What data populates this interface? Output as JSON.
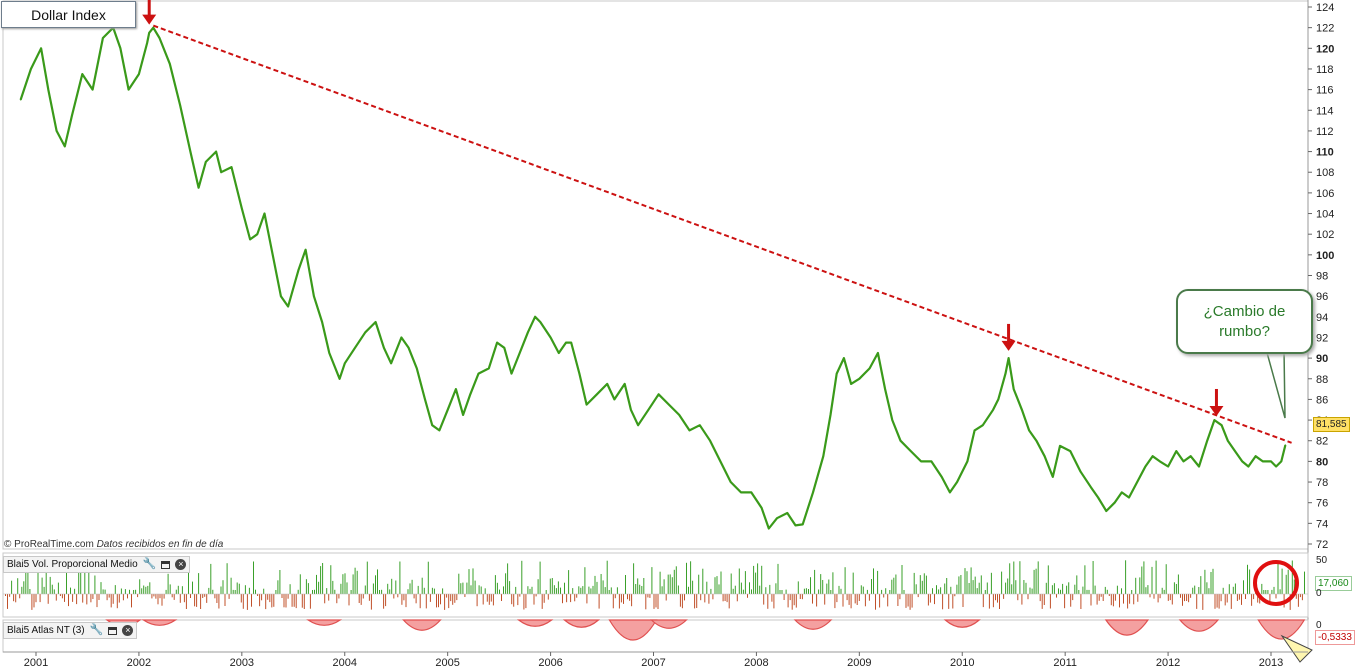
{
  "chart_data": [
    {
      "type": "line",
      "title": "Dollar Index",
      "subtitle": "",
      "xlabel": "",
      "ylabel": "",
      "ylim": [
        72,
        124
      ],
      "xlim": [
        2000.8,
        2013.3
      ],
      "y_ticks": [
        72,
        74,
        76,
        78,
        80,
        82,
        84,
        86,
        88,
        90,
        92,
        94,
        96,
        98,
        100,
        102,
        104,
        106,
        108,
        110,
        112,
        114,
        116,
        118,
        120,
        122,
        124
      ],
      "y_major_ticks": [
        80,
        90,
        100,
        110,
        120
      ],
      "x_tick_labels": [
        "2001",
        "2002",
        "2003",
        "2004",
        "2005",
        "2006",
        "2007",
        "2008",
        "2009",
        "2010",
        "2011",
        "2012",
        "2013"
      ],
      "grid": false,
      "legend": "none",
      "line_color": "#3a9a1a",
      "last_value_label": "81,585",
      "series": [
        {
          "points": [
            [
              2000.85,
              115
            ],
            [
              2000.95,
              118
            ],
            [
              2001.05,
              120
            ],
            [
              2001.12,
              116
            ],
            [
              2001.2,
              112
            ],
            [
              2001.28,
              110.5
            ],
            [
              2001.35,
              113.5
            ],
            [
              2001.45,
              117.5
            ],
            [
              2001.55,
              116
            ],
            [
              2001.65,
              121
            ],
            [
              2001.75,
              122
            ],
            [
              2001.82,
              120
            ],
            [
              2001.9,
              116
            ],
            [
              2002.0,
              117.5
            ],
            [
              2002.08,
              120.5
            ],
            [
              2002.1,
              121.5
            ],
            [
              2002.14,
              122
            ],
            [
              2002.2,
              121
            ],
            [
              2002.3,
              118.5
            ],
            [
              2002.4,
              114.5
            ],
            [
              2002.5,
              110
            ],
            [
              2002.58,
              106.5
            ],
            [
              2002.65,
              109
            ],
            [
              2002.75,
              110
            ],
            [
              2002.8,
              108
            ],
            [
              2002.9,
              108.5
            ],
            [
              2003.0,
              104.5
            ],
            [
              2003.08,
              101.5
            ],
            [
              2003.15,
              102
            ],
            [
              2003.22,
              104
            ],
            [
              2003.3,
              100
            ],
            [
              2003.38,
              96
            ],
            [
              2003.45,
              95
            ],
            [
              2003.55,
              98.5
            ],
            [
              2003.62,
              100.5
            ],
            [
              2003.7,
              96
            ],
            [
              2003.78,
              93.5
            ],
            [
              2003.85,
              90.5
            ],
            [
              2003.95,
              88
            ],
            [
              2004.0,
              89.5
            ],
            [
              2004.1,
              91
            ],
            [
              2004.2,
              92.5
            ],
            [
              2004.3,
              93.5
            ],
            [
              2004.38,
              91
            ],
            [
              2004.45,
              89.5
            ],
            [
              2004.55,
              92
            ],
            [
              2004.62,
              91
            ],
            [
              2004.7,
              89
            ],
            [
              2004.78,
              86
            ],
            [
              2004.85,
              83.5
            ],
            [
              2004.92,
              83
            ],
            [
              2005.0,
              85
            ],
            [
              2005.08,
              87
            ],
            [
              2005.15,
              84.5
            ],
            [
              2005.22,
              86.5
            ],
            [
              2005.3,
              88.5
            ],
            [
              2005.4,
              89
            ],
            [
              2005.48,
              91.5
            ],
            [
              2005.55,
              91
            ],
            [
              2005.62,
              88.5
            ],
            [
              2005.7,
              90.5
            ],
            [
              2005.78,
              92.5
            ],
            [
              2005.85,
              94
            ],
            [
              2005.9,
              93.5
            ],
            [
              2006.0,
              92
            ],
            [
              2006.08,
              90.5
            ],
            [
              2006.15,
              91.5
            ],
            [
              2006.2,
              91.5
            ],
            [
              2006.28,
              88.5
            ],
            [
              2006.35,
              85.5
            ],
            [
              2006.45,
              86.5
            ],
            [
              2006.55,
              87.5
            ],
            [
              2006.62,
              86
            ],
            [
              2006.72,
              87.5
            ],
            [
              2006.78,
              85
            ],
            [
              2006.85,
              83.5
            ],
            [
              2006.95,
              85
            ],
            [
              2007.05,
              86.5
            ],
            [
              2007.15,
              85.5
            ],
            [
              2007.25,
              84.5
            ],
            [
              2007.35,
              83
            ],
            [
              2007.45,
              83.5
            ],
            [
              2007.55,
              82
            ],
            [
              2007.65,
              80
            ],
            [
              2007.75,
              78
            ],
            [
              2007.85,
              77
            ],
            [
              2007.95,
              77
            ],
            [
              2008.05,
              75.5
            ],
            [
              2008.12,
              73.5
            ],
            [
              2008.2,
              74.5
            ],
            [
              2008.3,
              75
            ],
            [
              2008.38,
              73.8
            ],
            [
              2008.45,
              73.9
            ],
            [
              2008.55,
              77
            ],
            [
              2008.65,
              80.5
            ],
            [
              2008.72,
              84.5
            ],
            [
              2008.78,
              88.5
            ],
            [
              2008.85,
              90
            ],
            [
              2008.92,
              87.5
            ],
            [
              2009.0,
              88
            ],
            [
              2009.1,
              89
            ],
            [
              2009.18,
              90.5
            ],
            [
              2009.25,
              87
            ],
            [
              2009.32,
              84
            ],
            [
              2009.4,
              82
            ],
            [
              2009.5,
              81
            ],
            [
              2009.6,
              80
            ],
            [
              2009.7,
              80
            ],
            [
              2009.8,
              78.5
            ],
            [
              2009.88,
              77
            ],
            [
              2009.95,
              78
            ],
            [
              2010.05,
              80
            ],
            [
              2010.12,
              83
            ],
            [
              2010.2,
              83.5
            ],
            [
              2010.3,
              85
            ],
            [
              2010.35,
              86
            ],
            [
              2010.42,
              88.5
            ],
            [
              2010.45,
              90
            ],
            [
              2010.5,
              87
            ],
            [
              2010.58,
              85
            ],
            [
              2010.65,
              83
            ],
            [
              2010.72,
              82
            ],
            [
              2010.8,
              80.5
            ],
            [
              2010.88,
              78.5
            ],
            [
              2010.95,
              81.5
            ],
            [
              2011.05,
              81
            ],
            [
              2011.15,
              79
            ],
            [
              2011.25,
              77.5
            ],
            [
              2011.32,
              76.5
            ],
            [
              2011.4,
              75.2
            ],
            [
              2011.48,
              76
            ],
            [
              2011.55,
              77
            ],
            [
              2011.62,
              76.5
            ],
            [
              2011.7,
              78
            ],
            [
              2011.78,
              79.5
            ],
            [
              2011.85,
              80.5
            ],
            [
              2011.92,
              80
            ],
            [
              2012.0,
              79.5
            ],
            [
              2012.08,
              81
            ],
            [
              2012.15,
              80
            ],
            [
              2012.22,
              80.5
            ],
            [
              2012.3,
              79.5
            ],
            [
              2012.38,
              82
            ],
            [
              2012.45,
              84
            ],
            [
              2012.52,
              83.5
            ],
            [
              2012.58,
              82
            ],
            [
              2012.65,
              81
            ],
            [
              2012.72,
              80
            ],
            [
              2012.78,
              79.5
            ],
            [
              2012.85,
              80.5
            ],
            [
              2012.92,
              80
            ],
            [
              2013.0,
              80
            ],
            [
              2013.05,
              79.5
            ],
            [
              2013.1,
              80
            ],
            [
              2013.14,
              81.585
            ]
          ]
        }
      ],
      "trendline": {
        "style": "dashed",
        "color": "#cc1111",
        "from": [
          2002.14,
          122.2
        ],
        "to": [
          2013.2,
          81.8
        ]
      },
      "arrows": [
        {
          "x": 2002.1,
          "y_tip": 122.2,
          "color": "#cc1111"
        },
        {
          "x": 2010.45,
          "y_tip": 90.6,
          "color": "#cc1111"
        },
        {
          "x": 2012.47,
          "y_tip": 84.3,
          "color": "#cc1111"
        }
      ],
      "annotation": {
        "lines": [
          "¿Cambio de",
          "rumbo?"
        ]
      }
    },
    {
      "type": "bar",
      "title": "Blai5 Vol. Proporcional Medio",
      "ylim": [
        -20,
        50
      ],
      "y_ticks": [
        0,
        50
      ],
      "positive_color": "#3aa02a",
      "negative_color": "#c0502a",
      "last_value_label": "17,060"
    },
    {
      "type": "area",
      "title": "Blai5 Atlas NT (3)",
      "ylim": [
        -1,
        0
      ],
      "y_ticks": [
        0
      ],
      "color": "#e05050",
      "dips": [
        {
          "x": 2001.85,
          "depth": 0.25
        },
        {
          "x": 2002.2,
          "depth": 0.2
        },
        {
          "x": 2003.8,
          "depth": 0.2
        },
        {
          "x": 2004.75,
          "depth": 0.45
        },
        {
          "x": 2005.85,
          "depth": 0.25
        },
        {
          "x": 2006.3,
          "depth": 0.3
        },
        {
          "x": 2006.8,
          "depth": 0.95
        },
        {
          "x": 2007.15,
          "depth": 0.35
        },
        {
          "x": 2008.55,
          "depth": 0.4
        },
        {
          "x": 2010.0,
          "depth": 0.3
        },
        {
          "x": 2011.6,
          "depth": 0.7
        },
        {
          "x": 2012.3,
          "depth": 0.5
        },
        {
          "x": 2013.1,
          "depth": 0.9
        }
      ],
      "last_value_label": "-0,5333"
    }
  ],
  "credit": {
    "source": "© ProRealTime.com",
    "note": "Datos recibidos en fin de día"
  },
  "panels": {
    "vol_label": "Blai5 Vol. Proporcional Medio",
    "atlas_label": "Blai5 Atlas NT (3)",
    "vol_axis_top": "50",
    "vol_axis_zero": "0",
    "atlas_axis_zero": "0"
  },
  "icons": [
    "wrench-icon",
    "window-icon",
    "close-icon"
  ]
}
